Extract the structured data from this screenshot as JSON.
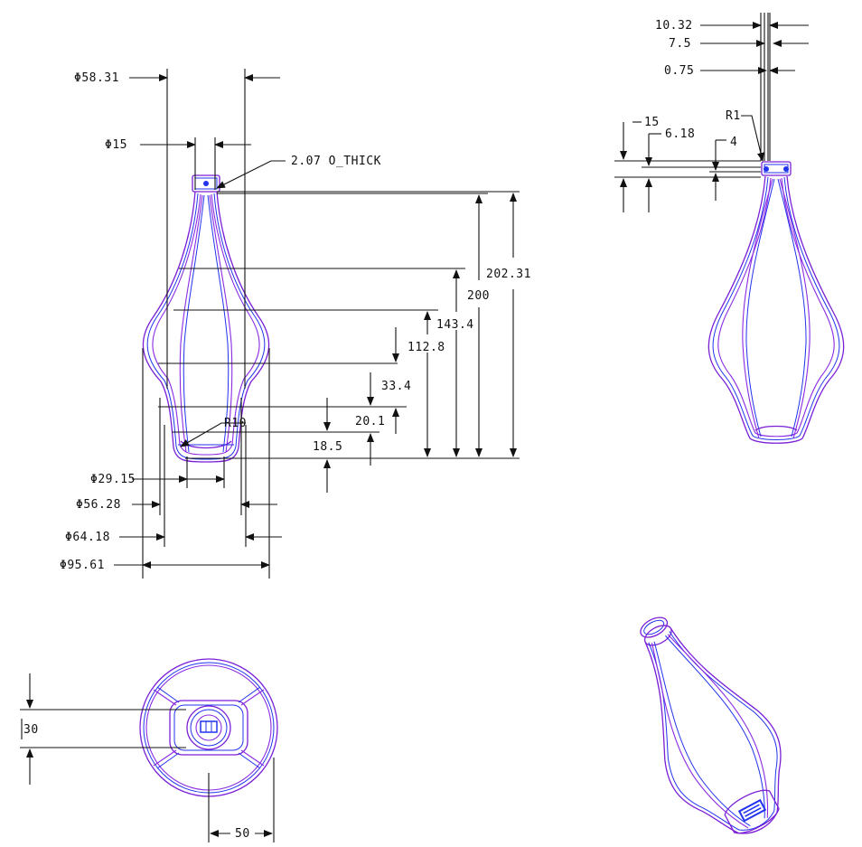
{
  "colors": {
    "outline_purple": "#7a1fd6",
    "outline_blue": "#2233ee",
    "dimension_black": "#111111"
  },
  "front_view": {
    "dia_58_31": "Φ58.31",
    "dia_15": "Φ15",
    "thickness_note": "2.07 O_THICK",
    "h_202_31": "202.31",
    "h_200": "200",
    "h_143_4": "143.4",
    "h_112_8": "112.8",
    "h_33_4": "33.4",
    "h_20_1": "20.1",
    "h_18_5": "18.5",
    "radius_r10": "R10",
    "dia_29_15": "Φ29.15",
    "dia_56_28": "Φ56.28",
    "dia_64_18": "Φ64.18",
    "dia_95_61": "Φ95.61"
  },
  "side_view": {
    "d_10_32": "10.32",
    "d_7_5": "7.5",
    "d_0_75": "0.75",
    "radius_r1": "R1",
    "d_15": "15",
    "d_6_18": "6.18",
    "d_4": "4"
  },
  "top_view": {
    "d_30": "30",
    "d_50": "50"
  }
}
